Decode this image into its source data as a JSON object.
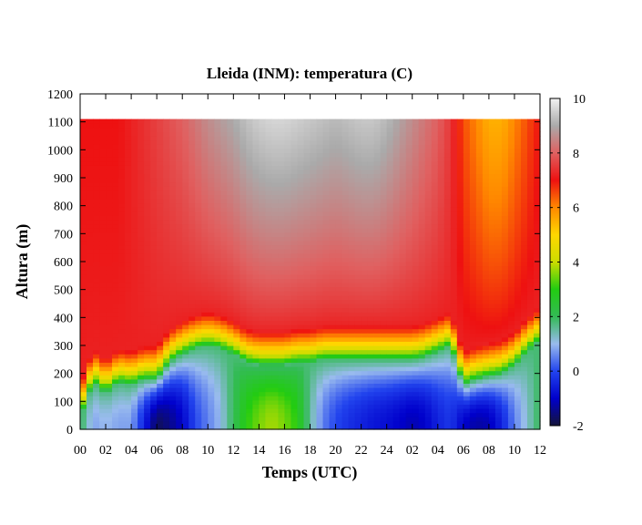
{
  "chart_data": {
    "type": "heatmap",
    "title": "Lleida (INM): temperatura (C)",
    "xlabel": "Temps (UTC)",
    "ylabel": "Altura (m)",
    "x_ticks": [
      "00",
      "02",
      "04",
      "06",
      "08",
      "10",
      "12",
      "14",
      "16",
      "18",
      "20",
      "22",
      "24",
      "02",
      "04",
      "06",
      "08",
      "10",
      "12"
    ],
    "x_range_hours": [
      0,
      36
    ],
    "y_ticks": [
      0,
      100,
      200,
      300,
      400,
      500,
      600,
      700,
      800,
      900,
      1000,
      1100,
      1200
    ],
    "ylim": [
      0,
      1200
    ],
    "data_top_m": 1110,
    "colorbar": {
      "ticks": [
        10,
        8,
        6,
        4,
        2,
        0,
        -2
      ],
      "range": [
        -2,
        10
      ],
      "stops": [
        {
          "value": -2,
          "color": "#14143a"
        },
        {
          "value": -1,
          "color": "#0000cc"
        },
        {
          "value": 0,
          "color": "#2244ee"
        },
        {
          "value": 1,
          "color": "#99bbee"
        },
        {
          "value": 2,
          "color": "#33bb55"
        },
        {
          "value": 3,
          "color": "#22cc11"
        },
        {
          "value": 4,
          "color": "#ccdd00"
        },
        {
          "value": 5,
          "color": "#ffd700"
        },
        {
          "value": 6,
          "color": "#ff8800"
        },
        {
          "value": 7,
          "color": "#ee1111"
        },
        {
          "value": 8,
          "color": "#e06060"
        },
        {
          "value": 9,
          "color": "#aaaaaa"
        },
        {
          "value": 10,
          "color": "#f2f2f2"
        }
      ]
    },
    "field_description": {
      "x_hours": [
        0,
        1,
        2,
        3,
        4,
        5,
        6,
        7,
        8,
        9,
        10,
        11,
        12,
        13,
        14,
        15,
        16,
        17,
        18,
        19,
        20,
        21,
        22,
        23,
        24,
        25,
        26,
        27,
        28,
        29,
        30,
        31,
        32,
        33,
        34,
        35,
        36
      ],
      "inversion_top_m": [
        40,
        170,
        130,
        170,
        160,
        180,
        180,
        240,
        270,
        290,
        300,
        290,
        270,
        240,
        230,
        230,
        230,
        240,
        240,
        250,
        250,
        250,
        250,
        250,
        250,
        250,
        250,
        260,
        280,
        300,
        160,
        180,
        190,
        200,
        230,
        280,
        320
      ],
      "surface_temp": [
        2,
        0.8,
        1,
        0.8,
        0.8,
        -0.5,
        -1.8,
        -1.5,
        -1,
        0,
        0.5,
        1,
        2,
        3,
        3.5,
        3.8,
        3.5,
        3,
        1.5,
        0.5,
        0,
        -0.3,
        -0.5,
        -0.7,
        -0.8,
        -1,
        -1.2,
        -1,
        -0.5,
        -0.2,
        -1,
        -1.3,
        -1.2,
        -0.5,
        0.5,
        1.2,
        2
      ],
      "upper_temp": [
        7,
        7,
        7,
        7,
        7.2,
        7.4,
        7.6,
        7.8,
        8,
        8.3,
        8.6,
        8.8,
        9,
        9.3,
        9.5,
        9.6,
        9.6,
        9.5,
        9.4,
        9.3,
        9.2,
        9.3,
        9.4,
        9.4,
        9.2,
        8.9,
        8.6,
        8.3,
        8,
        7.5,
        6.5,
        6,
        5.5,
        5.5,
        6,
        6.5,
        7
      ]
    }
  }
}
